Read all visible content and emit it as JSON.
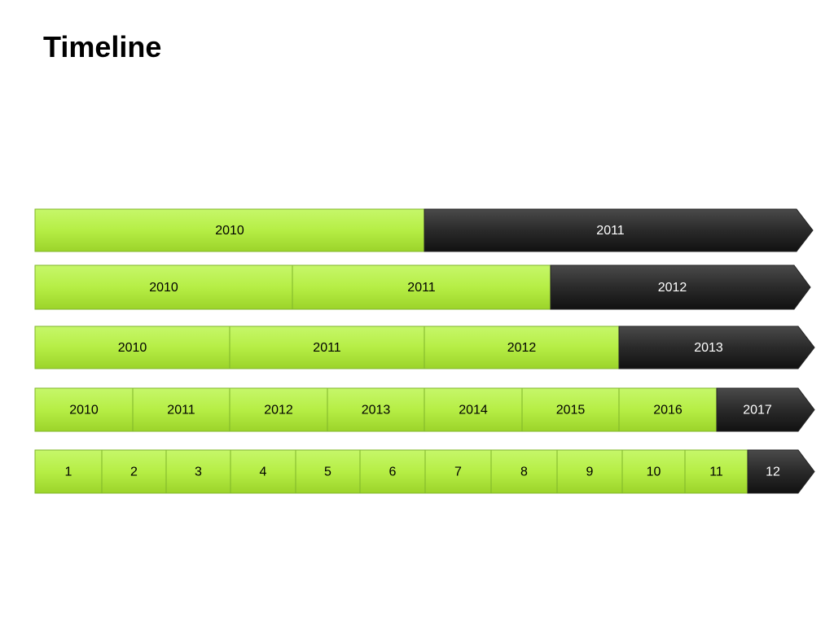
{
  "title": "Timeline",
  "rows": [
    {
      "segments": [
        "2010",
        "2011"
      ]
    },
    {
      "segments": [
        "2010",
        "2011",
        "2012"
      ]
    },
    {
      "segments": [
        "2010",
        "2011",
        "2012",
        "2013"
      ]
    },
    {
      "segments": [
        "2010",
        "2011",
        "2012",
        "2013",
        "2014",
        "2015",
        "2016",
        "2017"
      ]
    },
    {
      "segments": [
        "1",
        "2",
        "3",
        "4",
        "5",
        "6",
        "7",
        "8",
        "9",
        "10",
        "11",
        "12"
      ]
    }
  ]
}
